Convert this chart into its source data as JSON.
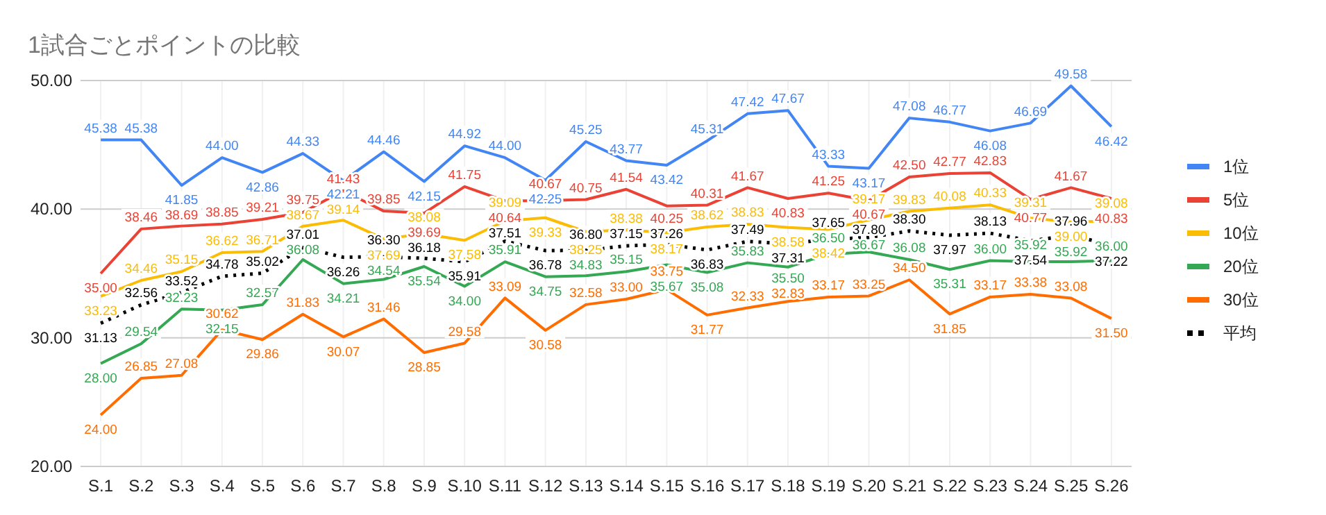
{
  "chart_data": {
    "type": "line",
    "title": "1試合ごとポイントの比較",
    "categories": [
      "S.1",
      "S.2",
      "S.3",
      "S.4",
      "S.5",
      "S.6",
      "S.7",
      "S.8",
      "S.9",
      "S.10",
      "S.11",
      "S.12",
      "S.13",
      "S.14",
      "S.15",
      "S.16",
      "S.17",
      "S.18",
      "S.19",
      "S.20",
      "S.21",
      "S.22",
      "S.23",
      "S.24",
      "S.25",
      "S.26"
    ],
    "series": [
      {
        "name": "1位",
        "color": "#4285f4",
        "values": [
          45.38,
          45.38,
          41.85,
          44.0,
          42.86,
          44.33,
          42.21,
          44.46,
          42.15,
          44.92,
          44.0,
          42.25,
          45.25,
          43.77,
          43.42,
          45.31,
          47.42,
          47.67,
          43.33,
          43.17,
          47.08,
          46.77,
          46.08,
          46.69,
          49.58,
          46.42
        ],
        "value_labels": [
          "45.38",
          "45.38",
          "41.85",
          "44.00",
          "42.86",
          "44.33",
          "42.21",
          "44.46",
          "42.15",
          "44.92",
          "44.00",
          "42.25",
          "45.25",
          "43.77",
          "43.42",
          "45.31",
          "47.42",
          "47.67",
          "43.33",
          "43.17",
          "47.08",
          "46.77",
          "46.08",
          "46.69",
          "49.58",
          "46.42"
        ]
      },
      {
        "name": "5位",
        "color": "#ea4335",
        "values": [
          35.0,
          38.46,
          38.69,
          38.85,
          39.21,
          39.75,
          41.43,
          39.85,
          39.69,
          41.75,
          40.64,
          40.67,
          40.75,
          41.54,
          40.25,
          40.31,
          41.67,
          40.83,
          41.25,
          40.67,
          42.5,
          42.77,
          42.83,
          40.77,
          41.67,
          40.83
        ],
        "value_labels": [
          "35.00",
          "38.46",
          "38.69",
          "38.85",
          "39.21",
          "39.75",
          "41.43",
          "39.85",
          "39.69",
          "41.75",
          "40.64",
          "40.67",
          "40.75",
          "41.54",
          "40.25",
          "40.31",
          "41.67",
          "40.83",
          "41.25",
          "40.67",
          "42.50",
          "42.77",
          "42.83",
          "40.77",
          "41.67",
          "40.83"
        ]
      },
      {
        "name": "10位",
        "color": "#fbbc04",
        "values": [
          33.23,
          34.46,
          35.15,
          36.62,
          36.71,
          38.67,
          39.14,
          37.69,
          38.08,
          37.58,
          39.09,
          39.33,
          38.25,
          38.38,
          38.17,
          38.62,
          38.83,
          38.58,
          38.42,
          39.17,
          39.83,
          40.08,
          40.33,
          39.31,
          39.0,
          39.08
        ],
        "value_labels": [
          "33.23",
          "34.46",
          "35.15",
          "36.62",
          "36.71",
          "38.67",
          "39.14",
          "37.69",
          "38.08",
          "37.58",
          "39.09",
          "39.33",
          "38.25",
          "38.38",
          "38.17",
          "38.62",
          "38.83",
          "38.58",
          "38.42",
          "39.17",
          "39.83",
          "40.08",
          "40.33",
          "39.31",
          "39.00",
          "39.08"
        ]
      },
      {
        "name": "20位",
        "color": "#34a853",
        "values": [
          28.0,
          29.54,
          32.23,
          32.15,
          32.57,
          36.08,
          34.21,
          34.54,
          35.54,
          34.0,
          35.91,
          34.75,
          34.83,
          35.15,
          35.67,
          35.08,
          35.83,
          35.5,
          36.5,
          36.67,
          36.08,
          35.31,
          36.0,
          35.92,
          35.92,
          36.0
        ],
        "value_labels": [
          "28.00",
          "29.54",
          "32.23",
          "32.15",
          "32.57",
          "36.08",
          "34.21",
          "34.54",
          "35.54",
          "34.00",
          "35.91",
          "34.75",
          "34.83",
          "35.15",
          "35.67",
          "35.08",
          "35.83",
          "35.50",
          "36.50",
          "36.67",
          "36.08",
          "35.31",
          "36.00",
          "35.92",
          "35.92",
          "36.00"
        ]
      },
      {
        "name": "30位",
        "color": "#ff6d01",
        "values": [
          24.0,
          26.85,
          27.08,
          30.62,
          29.86,
          31.83,
          30.07,
          31.46,
          28.85,
          29.58,
          33.09,
          30.58,
          32.58,
          33.0,
          33.75,
          31.77,
          32.33,
          32.83,
          33.17,
          33.25,
          34.5,
          31.85,
          33.17,
          33.38,
          33.08,
          31.5
        ],
        "value_labels": [
          "24.00",
          "26.85",
          "27.08",
          "30.62",
          "29.86",
          "31.83",
          "30.07",
          "31.46",
          "28.85",
          "29.58",
          "33.09",
          "30.58",
          "32.58",
          "33.00",
          "33.75",
          "31.77",
          "32.33",
          "32.83",
          "33.17",
          "33.25",
          "34.50",
          "31.85",
          "33.17",
          "33.38",
          "33.08",
          "31.50"
        ]
      },
      {
        "name": "平均",
        "color": "#000000",
        "line_style": "dotted",
        "values": [
          31.13,
          32.56,
          33.52,
          34.78,
          35.02,
          37.01,
          36.26,
          36.3,
          36.18,
          35.91,
          37.51,
          36.78,
          36.8,
          37.15,
          37.26,
          36.83,
          37.49,
          37.31,
          37.65,
          37.8,
          38.3,
          37.97,
          38.13,
          37.54,
          37.96,
          37.22
        ],
        "value_labels": [
          "31.13",
          "32.56",
          "33.52",
          "34.78",
          "35.02",
          "37.01",
          "36.26",
          "36.30",
          "36.18",
          "35.91",
          "37.51",
          "36.78",
          "36.80",
          "37.15",
          "37.26",
          "36.83",
          "37.49",
          "37.31",
          "37.65",
          "37.80",
          "38.30",
          "37.97",
          "38.13",
          "37.54",
          "37.96",
          "37.22"
        ]
      }
    ],
    "ylim": [
      20,
      50
    ],
    "yticks": [
      {
        "value": 20,
        "label": "20.00"
      },
      {
        "value": 30,
        "label": "30.00"
      },
      {
        "value": 40,
        "label": "40.00"
      },
      {
        "value": 50,
        "label": "50.00"
      }
    ],
    "grid": true,
    "legend": "right"
  }
}
